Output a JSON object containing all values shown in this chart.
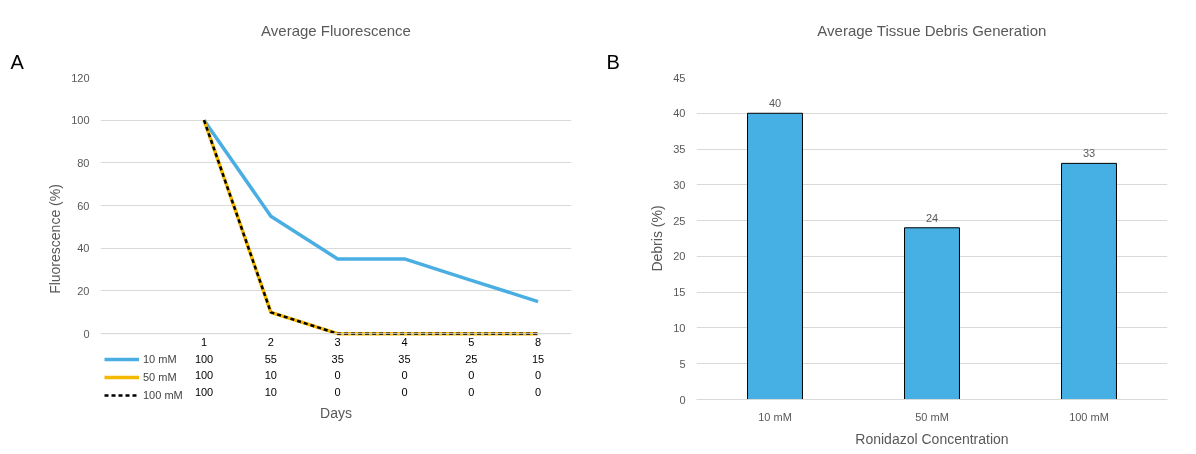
{
  "chart_data": [
    {
      "type": "line",
      "title": "Average Fluorescence",
      "xlabel": "Days",
      "ylabel": "Fluorescence (%)",
      "annotations": [
        "A"
      ],
      "categories": [
        "1",
        "2",
        "3",
        "4",
        "5",
        "8"
      ],
      "series": [
        {
          "name": "10 mM",
          "color": "#4aaee3",
          "values": [
            100,
            55,
            35,
            35,
            25,
            15
          ]
        },
        {
          "name": "50 mM",
          "color": "#f5b800",
          "values": [
            100,
            10,
            0,
            0,
            0,
            0
          ]
        },
        {
          "name": "100 mM",
          "color": "#000000",
          "values": [
            100,
            10,
            0,
            0,
            0,
            0
          ],
          "line_style": "dashed"
        }
      ],
      "ylim": [
        0,
        120
      ],
      "yticks": [
        0,
        20,
        40,
        60,
        80,
        100,
        120
      ],
      "grid": "y",
      "legend": "bottom left",
      "data_labels": true
    },
    {
      "type": "bar",
      "title": "Average Tissue Debris Generation",
      "xlabel": "Ronidazol Concentration",
      "ylabel": "Debris (%)",
      "annotations": [
        "B"
      ],
      "categories": [
        "10 mM",
        "50 mM",
        "100 mM"
      ],
      "values": [
        40,
        24,
        33
      ],
      "color": "#46afe3",
      "ylim": [
        0,
        45
      ],
      "yticks": [
        0,
        5,
        10,
        15,
        20,
        25,
        30,
        35,
        40,
        45
      ],
      "grid": "y",
      "data_labels": true
    }
  ]
}
